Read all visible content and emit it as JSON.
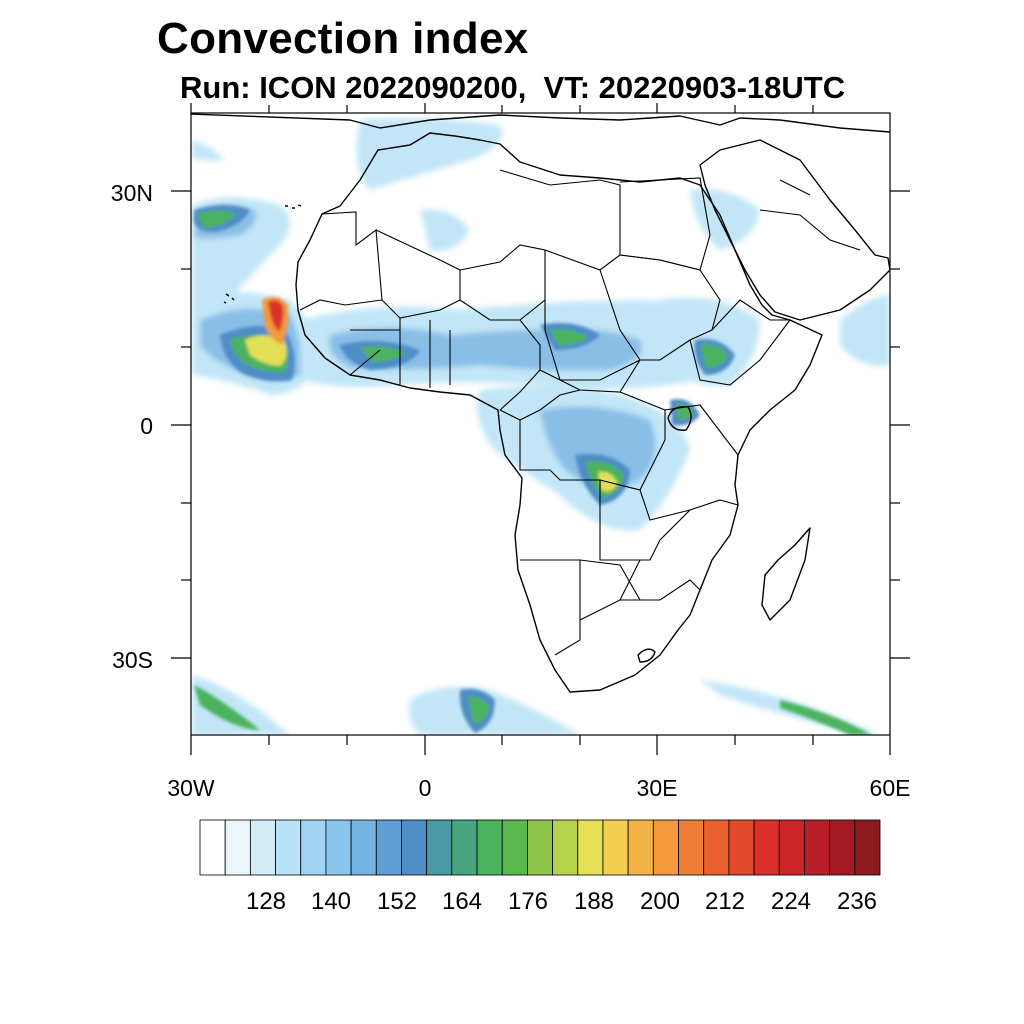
{
  "title": "Convection index",
  "subtitle": "Run: ICON 2022090200,  VT: 20220903-18UTC",
  "axes": {
    "lat_labels": [
      "30N",
      "0",
      "30S"
    ],
    "lon_labels": [
      "30W",
      "0",
      "30E",
      "60E"
    ]
  },
  "colorbar": {
    "tick_labels": [
      "128",
      "140",
      "152",
      "164",
      "176",
      "188",
      "200",
      "212",
      "224",
      "236"
    ],
    "colors": [
      "#ffffff",
      "#eaf6fc",
      "#d2ecf8",
      "#b8e2f6",
      "#9fd5f2",
      "#88c6ec",
      "#75b3e3",
      "#5f9fd6",
      "#4f8dc6",
      "#4b9aa8",
      "#47a67f",
      "#4cb35e",
      "#5ab94c",
      "#8fc64a",
      "#b7d24c",
      "#e4e057",
      "#f5cf52",
      "#f4b445",
      "#f29a3c",
      "#ee7e35",
      "#e8612e",
      "#e24a2c",
      "#da3029",
      "#cc2428",
      "#b81f26",
      "#a21b24",
      "#8c1a21"
    ]
  },
  "map": {
    "region": "Africa",
    "lon_range": [
      -30,
      60
    ],
    "lat_range": [
      -40,
      40
    ],
    "field": "convection index",
    "colors": {
      "light_blue": "#b8e2f6",
      "mid_blue": "#75b3e3",
      "blue": "#4f8dc6",
      "teal": "#4b9aa8",
      "green": "#4cb35e",
      "yellow": "#e4e057",
      "orange": "#f29a3c",
      "red": "#da3029"
    }
  }
}
